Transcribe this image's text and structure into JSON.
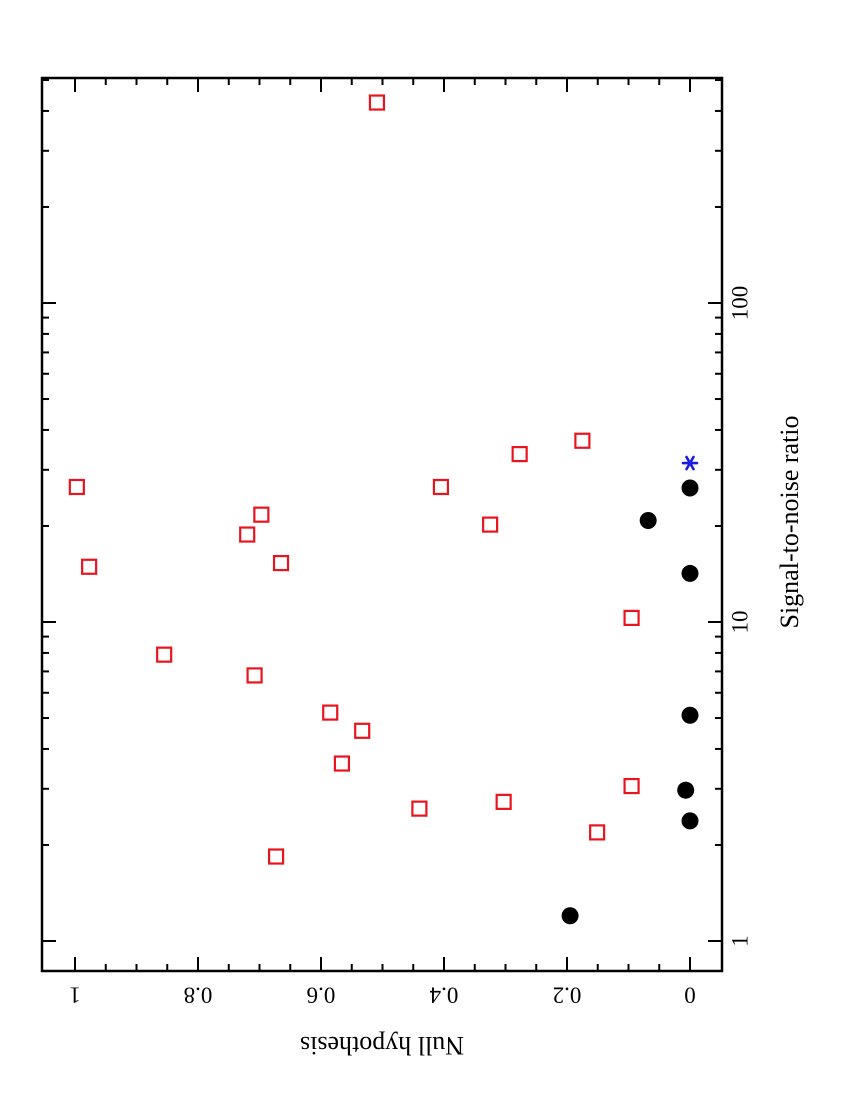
{
  "chart_data": {
    "type": "scatter",
    "title": "",
    "xlabel": "Null hypothesis",
    "ylabel": "Signal-to-noise ratio",
    "xlim": [
      0,
      1
    ],
    "ylim": [
      0.85,
      550
    ],
    "yscale": "log",
    "x_ticks": [
      {
        "value": 1,
        "label": "1"
      },
      {
        "value": 0.8,
        "label": "0.8"
      },
      {
        "value": 0.6,
        "label": "0.6"
      },
      {
        "value": 0.4,
        "label": "0.4"
      },
      {
        "value": 0.2,
        "label": "0.2"
      },
      {
        "value": 0,
        "label": "0"
      }
    ],
    "y_ticks": [
      {
        "value": 1,
        "label": "1"
      },
      {
        "value": 10,
        "label": "10"
      },
      {
        "value": 100,
        "label": "100"
      }
    ],
    "orientation": "rotated 90 degrees clockwise",
    "grid": false,
    "legend": "none",
    "series": [
      {
        "marker": "open-square",
        "color": "#e8141e",
        "points": [
          {
            "x": 0.997,
            "y": 26.5
          },
          {
            "x": 0.977,
            "y": 14.9
          },
          {
            "x": 0.855,
            "y": 7.9
          },
          {
            "x": 0.72,
            "y": 18.8
          },
          {
            "x": 0.697,
            "y": 21.7
          },
          {
            "x": 0.708,
            "y": 6.8
          },
          {
            "x": 0.665,
            "y": 15.3
          },
          {
            "x": 0.673,
            "y": 1.84
          },
          {
            "x": 0.585,
            "y": 5.2
          },
          {
            "x": 0.533,
            "y": 4.56
          },
          {
            "x": 0.566,
            "y": 3.6
          },
          {
            "x": 0.509,
            "y": 425
          },
          {
            "x": 0.44,
            "y": 2.6
          },
          {
            "x": 0.405,
            "y": 26.5
          },
          {
            "x": 0.325,
            "y": 20.2
          },
          {
            "x": 0.303,
            "y": 2.73
          },
          {
            "x": 0.277,
            "y": 33.6
          },
          {
            "x": 0.175,
            "y": 37.0
          },
          {
            "x": 0.151,
            "y": 2.19
          },
          {
            "x": 0.095,
            "y": 10.3
          },
          {
            "x": 0.095,
            "y": 3.06
          }
        ]
      },
      {
        "marker": "filled-circle",
        "color": "#000000",
        "points": [
          {
            "x": 0.195,
            "y": 1.2
          },
          {
            "x": 0.068,
            "y": 20.8
          },
          {
            "x": 0.0,
            "y": 26.3
          },
          {
            "x": 0.0,
            "y": 14.2
          },
          {
            "x": 0.0,
            "y": 5.1
          },
          {
            "x": 0.007,
            "y": 2.97
          },
          {
            "x": 0.0,
            "y": 2.38
          }
        ]
      },
      {
        "marker": "asterisk",
        "color": "#1c1ce0",
        "points": [
          {
            "x": 0.0,
            "y": 31.5
          }
        ]
      }
    ]
  }
}
